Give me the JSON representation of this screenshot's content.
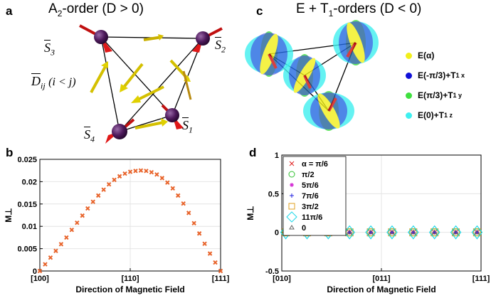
{
  "panels": {
    "a": {
      "letter": "a",
      "title_main": "A",
      "title_sub": "2",
      "title_rest": "-order (D > 0)",
      "labels": {
        "s1": "S",
        "s1_sub": "1",
        "s2": "S",
        "s2_sub": "2",
        "s3": "S",
        "s3_sub": "3",
        "s4": "S",
        "s4_sub": "4",
        "d": "D",
        "d_sub": "ij",
        "d_cond": "(i < j)"
      }
    },
    "b": {
      "letter": "b"
    },
    "c": {
      "letter": "c",
      "title_main": "E + T",
      "title_sub": "1",
      "title_rest": "-orders (D < 0)",
      "legend": [
        {
          "label": "E(α)",
          "color": "#f2ef1a"
        },
        {
          "label": "E(-π/3)+T",
          "sub": "1 x",
          "color": "#1010d8"
        },
        {
          "label": "E(π/3)+T",
          "sub": "1 y",
          "color": "#3fe03f"
        },
        {
          "label": "E(0)+T",
          "sub": "1 z",
          "color": "#3ff0f0"
        }
      ]
    },
    "d": {
      "letter": "d"
    }
  },
  "chart_data": [
    {
      "type": "scatter",
      "panel": "b",
      "xlabel": "Direction of Magnetic Field",
      "ylabel": "M⊥",
      "ylim": [
        0,
        0.025
      ],
      "yticks": [
        "0",
        "0.005",
        "0.01",
        "0.015",
        "0.02",
        "0.025"
      ],
      "xticks": [
        "[100]",
        "[110]",
        "[111]"
      ],
      "grid": true,
      "marker_color": "#e8632a",
      "series": [
        {
          "x": [
            0,
            1,
            2,
            3,
            4,
            5,
            6,
            7,
            8,
            9,
            10,
            11,
            12,
            13,
            14,
            15,
            16,
            17,
            18,
            19,
            20,
            21,
            22,
            23,
            24,
            25,
            26,
            27,
            28,
            29,
            30,
            31,
            32,
            33,
            34
          ],
          "values": [
            0,
            0.0015,
            0.003,
            0.0045,
            0.006,
            0.0075,
            0.0092,
            0.0108,
            0.0124,
            0.014,
            0.0155,
            0.0169,
            0.0182,
            0.0194,
            0.0204,
            0.0212,
            0.0218,
            0.0222,
            0.0224,
            0.0225,
            0.0224,
            0.0221,
            0.0216,
            0.0208,
            0.0198,
            0.0185,
            0.0169,
            0.0151,
            0.013,
            0.0107,
            0.0084,
            0.0061,
            0.0039,
            0.0019,
            0
          ]
        }
      ]
    },
    {
      "type": "scatter",
      "panel": "d",
      "xlabel": "Direction of Magnetic Field",
      "ylabel": "M⊥",
      "ylim": [
        -0.5,
        1
      ],
      "yticks": [
        "-0.5",
        "0",
        "0.5",
        "1"
      ],
      "xticks": [
        "[010]",
        "[011]",
        "[111]"
      ],
      "grid": true,
      "x": [
        0,
        1,
        2,
        3,
        4,
        5,
        6,
        7,
        8,
        9
      ],
      "series": [
        {
          "name": "α = π/6",
          "marker": "x",
          "color": "#e02020",
          "values": [
            0,
            0,
            0,
            0,
            0,
            0,
            0,
            0,
            0,
            0
          ]
        },
        {
          "name": "π/2",
          "marker": "o",
          "color": "#30c030",
          "values": [
            0,
            0,
            0,
            0,
            0,
            0,
            0,
            0,
            0,
            0
          ]
        },
        {
          "name": "5π/6",
          "marker": "*",
          "color": "#d020d0",
          "values": [
            0,
            0,
            0,
            0,
            0,
            0,
            0,
            0,
            0,
            0
          ]
        },
        {
          "name": "7π/6",
          "marker": "+",
          "color": "#2020e0",
          "values": [
            0,
            0,
            0,
            0,
            0,
            0,
            0,
            0,
            0,
            0
          ]
        },
        {
          "name": "3π/2",
          "marker": "s",
          "color": "#e0a020",
          "values": [
            0,
            0,
            0,
            0,
            0,
            0,
            0,
            0,
            0,
            0
          ]
        },
        {
          "name": "11π/6",
          "marker": "d",
          "color": "#20d8e8",
          "values": [
            0,
            0,
            0,
            0,
            0,
            0,
            0,
            0,
            0,
            0
          ]
        },
        {
          "name": "0",
          "marker": "^",
          "color": "#606060",
          "values": [
            0,
            0,
            0,
            0,
            0,
            0,
            0,
            0,
            0,
            0
          ]
        }
      ]
    }
  ]
}
